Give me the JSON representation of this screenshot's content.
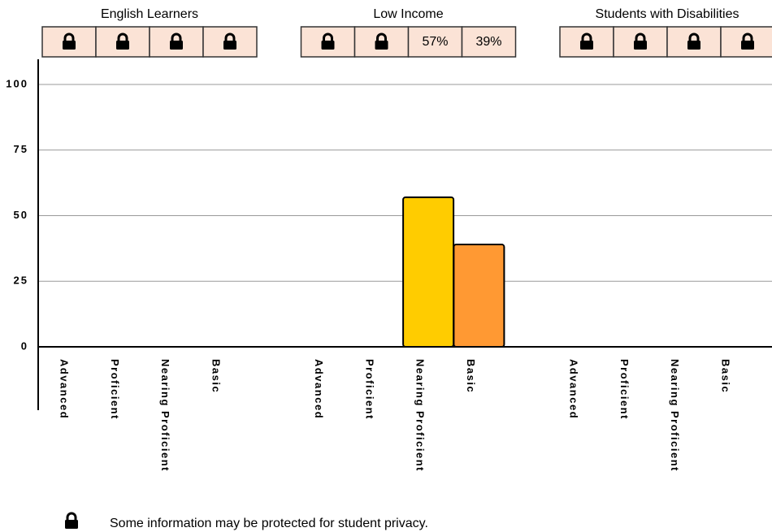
{
  "chart_data": {
    "type": "bar",
    "categories": [
      "Advanced",
      "Proficient",
      "Nearing Proficient",
      "Basic"
    ],
    "category_colors": [
      null,
      null,
      "#ffcc00",
      "#ff9933"
    ],
    "series": [
      {
        "name": "English Learners",
        "values": [
          null,
          null,
          null,
          null
        ]
      },
      {
        "name": "Low Income",
        "values": [
          null,
          null,
          57,
          39
        ],
        "value_labels": [
          null,
          null,
          "57%",
          "39%"
        ]
      },
      {
        "name": "Students with Disabilities",
        "values": [
          null,
          null,
          null,
          null
        ]
      }
    ],
    "ylim": [
      0,
      100
    ],
    "yticks": [
      0,
      25,
      50,
      75,
      100
    ],
    "grid": true,
    "note": "Some information may be protected for student privacy."
  }
}
